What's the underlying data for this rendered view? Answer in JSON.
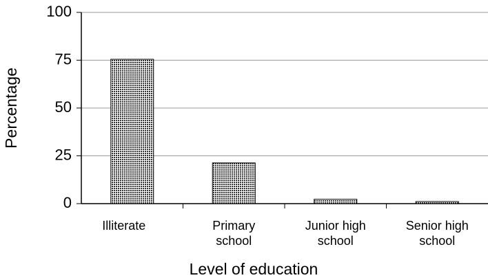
{
  "chart_data": {
    "type": "bar",
    "categories": [
      "Illiterate",
      "Primary school",
      "Junior high school",
      "Senior high school"
    ],
    "values": [
      75.5,
      21.3,
      2.3,
      1.1
    ],
    "color": "#555555",
    "ylim": [
      0,
      100
    ],
    "yticks": [
      0,
      25,
      50,
      75,
      100
    ],
    "grid": true,
    "xlabel": "Level of education",
    "ylabel": "Percentage"
  }
}
